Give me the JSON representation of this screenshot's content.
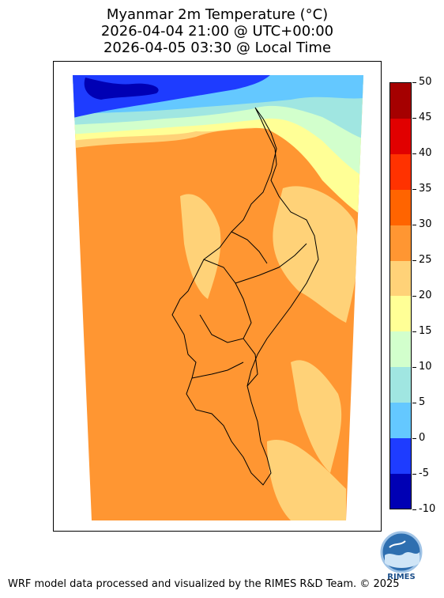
{
  "title": {
    "line1": "Myanmar 2m Temperature (°C)",
    "line2": "2026-04-04 21:00 @ UTC+00:00",
    "line3": "2026-04-05 03:30 @ Local Time"
  },
  "colorbar": {
    "unit": "°C",
    "min": -10,
    "max": 50,
    "levels": [
      -10,
      -5,
      0,
      5,
      10,
      15,
      20,
      25,
      30,
      35,
      40,
      45,
      50
    ],
    "tick_labels": [
      "50",
      "45",
      "40",
      "35",
      "30",
      "25",
      "20",
      "15",
      "10",
      "5",
      "0",
      "-5",
      "-10"
    ],
    "colors": [
      "#0000b4",
      "#1e3cff",
      "#64c8ff",
      "#a0e6e1",
      "#d2ffcc",
      "#ffff96",
      "#ffd278",
      "#ff9632",
      "#ff6400",
      "#ff3200",
      "#e10000",
      "#a50000"
    ]
  },
  "logo": {
    "text": "RIMES"
  },
  "footer": "WRF model data processed and visualized by the RIMES R&D Team. © 2025"
}
